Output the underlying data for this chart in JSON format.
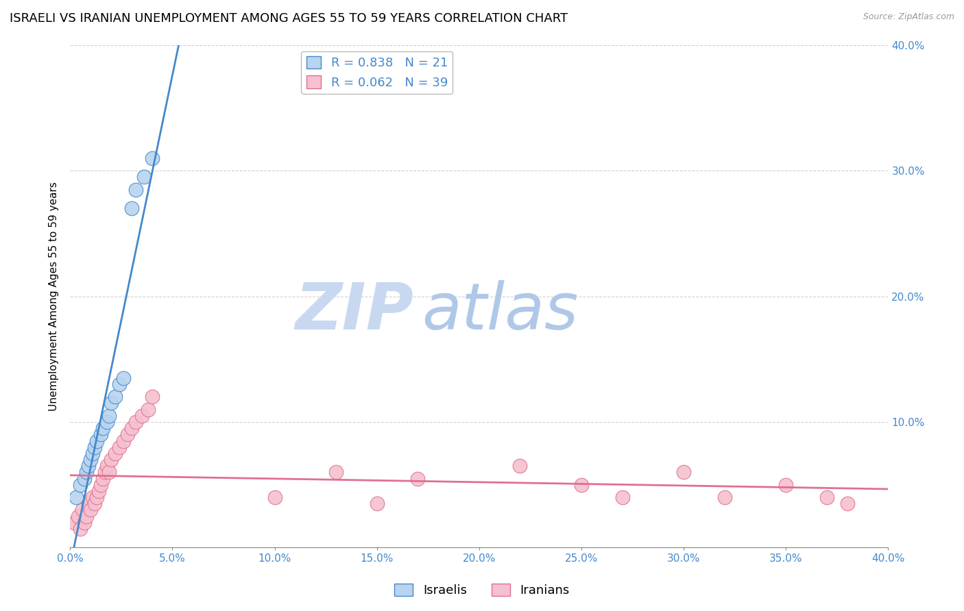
{
  "title": "ISRAELI VS IRANIAN UNEMPLOYMENT AMONG AGES 55 TO 59 YEARS CORRELATION CHART",
  "source": "Source: ZipAtlas.com",
  "ylabel": "Unemployment Among Ages 55 to 59 years",
  "xlim": [
    0.0,
    0.4
  ],
  "ylim": [
    0.0,
    0.4
  ],
  "xticks": [
    0.0,
    0.05,
    0.1,
    0.15,
    0.2,
    0.25,
    0.3,
    0.35,
    0.4
  ],
  "yticks": [
    0.0,
    0.1,
    0.2,
    0.3,
    0.4
  ],
  "israelis_x": [
    0.003,
    0.005,
    0.007,
    0.008,
    0.009,
    0.01,
    0.011,
    0.012,
    0.013,
    0.015,
    0.016,
    0.018,
    0.019,
    0.02,
    0.022,
    0.024,
    0.026,
    0.03,
    0.032,
    0.036,
    0.04
  ],
  "israelis_y": [
    0.04,
    0.05,
    0.055,
    0.06,
    0.065,
    0.07,
    0.075,
    0.08,
    0.085,
    0.09,
    0.095,
    0.1,
    0.105,
    0.115,
    0.12,
    0.13,
    0.135,
    0.27,
    0.285,
    0.295,
    0.31
  ],
  "iranians_x": [
    0.002,
    0.004,
    0.005,
    0.006,
    0.007,
    0.008,
    0.009,
    0.01,
    0.011,
    0.012,
    0.013,
    0.014,
    0.015,
    0.016,
    0.017,
    0.018,
    0.019,
    0.02,
    0.022,
    0.024,
    0.026,
    0.028,
    0.03,
    0.032,
    0.035,
    0.038,
    0.04,
    0.1,
    0.13,
    0.15,
    0.17,
    0.22,
    0.25,
    0.27,
    0.3,
    0.32,
    0.35,
    0.37,
    0.38
  ],
  "iranians_y": [
    0.02,
    0.025,
    0.015,
    0.03,
    0.02,
    0.025,
    0.035,
    0.03,
    0.04,
    0.035,
    0.04,
    0.045,
    0.05,
    0.055,
    0.06,
    0.065,
    0.06,
    0.07,
    0.075,
    0.08,
    0.085,
    0.09,
    0.095,
    0.1,
    0.105,
    0.11,
    0.12,
    0.04,
    0.06,
    0.035,
    0.055,
    0.065,
    0.05,
    0.04,
    0.06,
    0.04,
    0.05,
    0.04,
    0.035
  ],
  "israeli_R": 0.838,
  "israeli_N": 21,
  "iranian_R": 0.062,
  "iranian_N": 39,
  "israeli_color": "#b8d4ee",
  "iranian_color": "#f5c0cf",
  "israeli_line_color": "#4488cc",
  "iranian_line_color": "#e07090",
  "tick_color": "#4488cc",
  "grid_color": "#cccccc",
  "background_color": "#ffffff",
  "watermark_zip_color": "#c8d8f0",
  "watermark_atlas_color": "#b0c8e8",
  "title_fontsize": 13,
  "axis_fontsize": 11,
  "tick_fontsize": 11,
  "legend_fontsize": 13
}
